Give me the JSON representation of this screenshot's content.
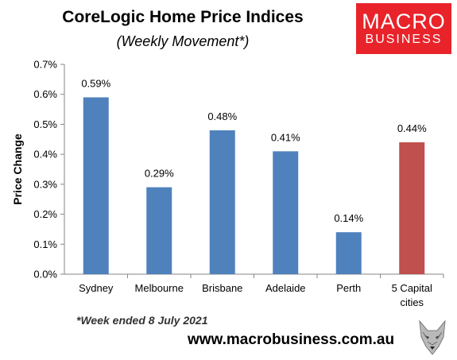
{
  "header": {
    "title": "CoreLogic Home Price Indices",
    "subtitle": "(Weekly Movement*)"
  },
  "logo": {
    "line1": "MACRO",
    "line2": "BUSINESS",
    "color": "#e8232a"
  },
  "footer": {
    "footnote": "*Week ended 8 July 2021",
    "website": "www.macrobusiness.com.au",
    "wolf_icon": "wolf-head-icon"
  },
  "chart_data": {
    "type": "bar",
    "ylabel": "Price Change",
    "ylim": [
      0,
      0.7
    ],
    "yticks": [
      {
        "value": 0.0,
        "label": "0.0%"
      },
      {
        "value": 0.1,
        "label": "0.1%"
      },
      {
        "value": 0.2,
        "label": "0.2%"
      },
      {
        "value": 0.3,
        "label": "0.3%"
      },
      {
        "value": 0.4,
        "label": "0.4%"
      },
      {
        "value": 0.5,
        "label": "0.5%"
      },
      {
        "value": 0.6,
        "label": "0.6%"
      },
      {
        "value": 0.7,
        "label": "0.7%"
      }
    ],
    "categories": [
      [
        "Sydney"
      ],
      [
        "Melbourne"
      ],
      [
        "Brisbane"
      ],
      [
        "Adelaide"
      ],
      [
        "Perth"
      ],
      [
        "5 Capital",
        "cities"
      ]
    ],
    "values": [
      0.59,
      0.29,
      0.48,
      0.41,
      0.14,
      0.44
    ],
    "data_labels": [
      "0.59%",
      "0.29%",
      "0.48%",
      "0.41%",
      "0.14%",
      "0.44%"
    ],
    "bar_colors": [
      "#4f81bd",
      "#4f81bd",
      "#4f81bd",
      "#4f81bd",
      "#4f81bd",
      "#c0504d"
    ],
    "grid": false,
    "legend": "none"
  }
}
